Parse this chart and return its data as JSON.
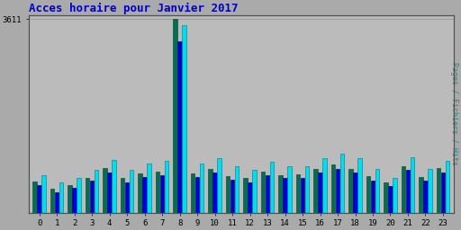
{
  "title": "Acces horaire pour Janvier 2017",
  "ylabel_right": "Pages / Fichiers / Hits",
  "ytick_label": "3611",
  "ymax": 3611,
  "hours": [
    0,
    1,
    2,
    3,
    4,
    5,
    6,
    7,
    8,
    9,
    10,
    11,
    12,
    13,
    14,
    15,
    16,
    17,
    18,
    19,
    20,
    21,
    22,
    23
  ],
  "pages": [
    580,
    440,
    520,
    650,
    830,
    640,
    730,
    770,
    3611,
    730,
    820,
    680,
    640,
    760,
    700,
    720,
    820,
    900,
    820,
    680,
    570,
    870,
    660,
    830
  ],
  "fichiers": [
    520,
    380,
    460,
    590,
    750,
    570,
    660,
    700,
    3200,
    660,
    740,
    610,
    570,
    700,
    640,
    640,
    750,
    820,
    750,
    600,
    490,
    790,
    590,
    750
  ],
  "hits": [
    700,
    560,
    640,
    800,
    980,
    790,
    910,
    970,
    3500,
    920,
    1020,
    860,
    800,
    950,
    870,
    870,
    1010,
    1100,
    1010,
    820,
    640,
    1030,
    820,
    960
  ],
  "color_pages": "#007050",
  "color_fichiers": "#0000dd",
  "color_hits": "#00ddee",
  "bg_color": "#aaaaaa",
  "plot_bg": "#bbbbbb",
  "title_color": "#0000cc",
  "ylabel_color": "#009999",
  "title_fontsize": 9,
  "tick_fontsize": 6.5
}
